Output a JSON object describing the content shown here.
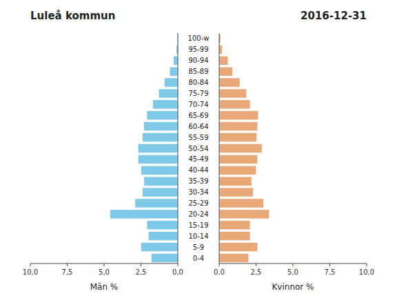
{
  "chart_data": [
    {
      "type": "bar",
      "orientation": "horizontal",
      "title": "Luleå kommun",
      "xlabel": "Män %",
      "categories": [
        "0-4",
        "5-9",
        "10-14",
        "15-19",
        "20-24",
        "25-29",
        "30-34",
        "35-39",
        "40-44",
        "45-49",
        "50-54",
        "55-59",
        "60-64",
        "65-69",
        "70-74",
        "75-79",
        "80-84",
        "85-89",
        "90-94",
        "95-99",
        "100-w"
      ],
      "values": [
        1.8,
        2.5,
        2.0,
        2.1,
        4.6,
        2.9,
        2.4,
        2.3,
        2.5,
        2.7,
        2.7,
        2.4,
        2.3,
        2.1,
        1.7,
        1.3,
        0.9,
        0.55,
        0.3,
        0.1,
        0.05
      ],
      "color": "#7ec8e8",
      "xlim": [
        10,
        0
      ],
      "xticks": [
        {
          "value": 10,
          "label": "10,0"
        },
        {
          "value": 7.5,
          "label": "7,5"
        },
        {
          "value": 5,
          "label": "5,0"
        },
        {
          "value": 2.5,
          "label": "2,5"
        },
        {
          "value": 0,
          "label": "0,0"
        }
      ],
      "grid": false
    },
    {
      "type": "bar",
      "orientation": "horizontal",
      "title": "2016-12-31",
      "xlabel": "Kvinnor %",
      "categories": [
        "0-4",
        "5-9",
        "10-14",
        "15-19",
        "20-24",
        "25-29",
        "30-34",
        "35-39",
        "40-44",
        "45-49",
        "50-54",
        "55-59",
        "60-64",
        "65-69",
        "70-74",
        "75-79",
        "80-84",
        "85-89",
        "90-94",
        "95-99",
        "100-w"
      ],
      "values": [
        2.0,
        2.6,
        2.1,
        2.1,
        3.4,
        3.0,
        2.3,
        2.2,
        2.5,
        2.6,
        2.9,
        2.55,
        2.6,
        2.65,
        2.1,
        1.85,
        1.4,
        0.9,
        0.6,
        0.2,
        0.1
      ],
      "color": "#e8a878",
      "xlim": [
        0,
        10
      ],
      "xticks": [
        {
          "value": 0,
          "label": "0,0"
        },
        {
          "value": 2.5,
          "label": "2,5"
        },
        {
          "value": 5,
          "label": "5,0"
        },
        {
          "value": 7.5,
          "label": "7,5"
        },
        {
          "value": 10,
          "label": "10,0"
        }
      ],
      "grid": false
    }
  ]
}
